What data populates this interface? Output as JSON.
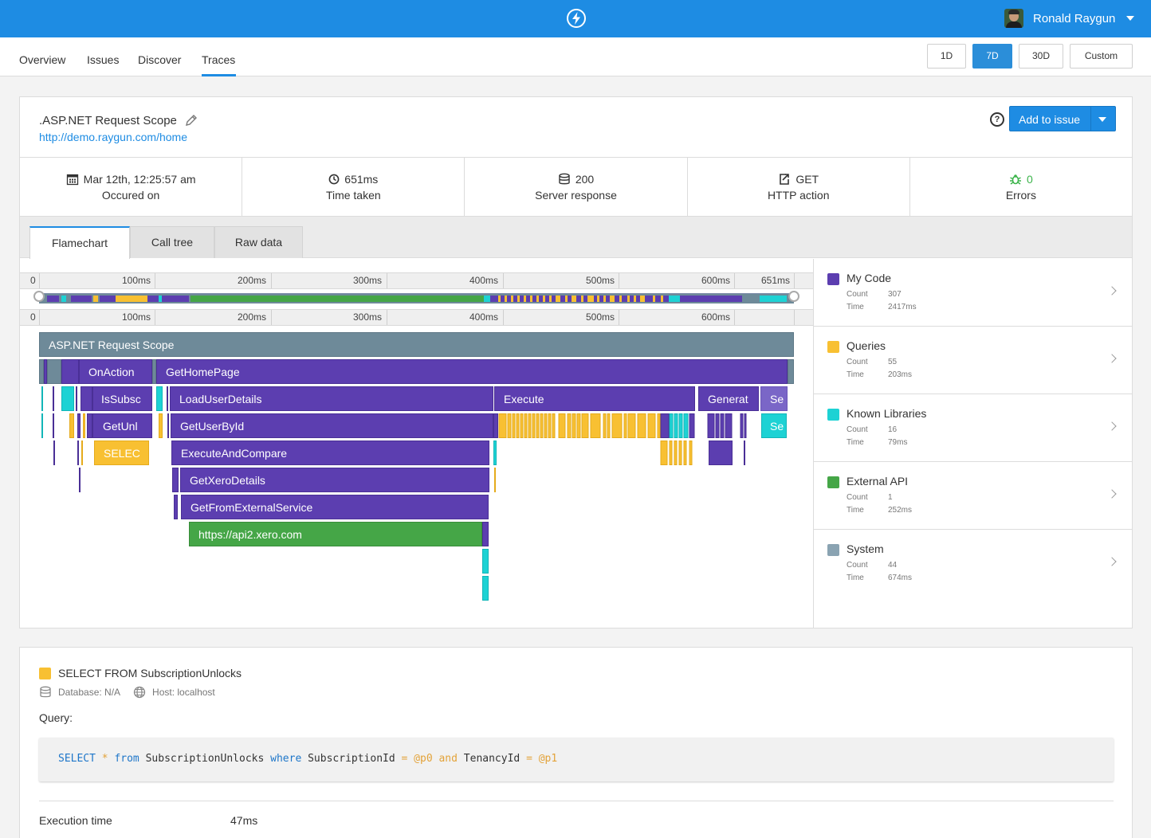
{
  "user": {
    "name": "Ronald Raygun"
  },
  "nav": {
    "items": [
      {
        "label": "Overview"
      },
      {
        "label": "Issues"
      },
      {
        "label": "Discover"
      },
      {
        "label": "Traces"
      }
    ],
    "active": "Traces",
    "ranges": [
      {
        "label": "1D"
      },
      {
        "label": "7D"
      },
      {
        "label": "30D"
      },
      {
        "label": "Custom"
      }
    ],
    "active_range": "7D"
  },
  "trace": {
    "title": ".ASP.NET Request Scope",
    "url": "http://demo.raygun.com/home",
    "add_button": "Add to issue",
    "help": "?"
  },
  "stats": [
    {
      "icon": "calendar-icon",
      "value": "Mar 12th, 12:25:57 am",
      "label": "Occured on"
    },
    {
      "icon": "clock-icon",
      "value": "651ms",
      "label": "Time taken"
    },
    {
      "icon": "database-icon",
      "value": "200",
      "label": "Server response"
    },
    {
      "icon": "export-icon",
      "value": "GET",
      "label": "HTTP action"
    },
    {
      "icon": "bug-icon",
      "value": "0",
      "label": "Errors"
    }
  ],
  "tabs": [
    {
      "label": "Flamechart"
    },
    {
      "label": "Call tree"
    },
    {
      "label": "Raw data"
    }
  ],
  "active_tab": "Flamechart",
  "timeline": {
    "top_ticks": [
      "0",
      "100ms",
      "200ms",
      "300ms",
      "400ms",
      "500ms",
      "600ms",
      "651ms"
    ],
    "bottom_ticks": [
      "0",
      "100ms",
      "200ms",
      "300ms",
      "400ms",
      "500ms",
      "600ms"
    ]
  },
  "flame": {
    "labels": {
      "root": "ASP.NET Request Scope",
      "onaction": "OnAction",
      "gethomepage": "GetHomePage",
      "issubsc": "IsSubsc",
      "loaduserdetails": "LoadUserDetails",
      "execute": "Execute",
      "generat": "Generat",
      "se1": "Se",
      "getunl": "GetUnl",
      "getuserbyid": "GetUserById",
      "se2": "Se",
      "selec": "SELEC",
      "executeandcompare": "ExecuteAndCompare",
      "getxerodetails": "GetXeroDetails",
      "getfromexternalservice": "GetFromExternalService",
      "api": "https://api2.xero.com"
    }
  },
  "colors": {
    "my_code": "#5c3eb0",
    "queries": "#f8c032",
    "known_libraries": "#1dd2d4",
    "external_api": "#45a647",
    "system": "#6e8a99",
    "accent": "#1e8ce3"
  },
  "legend": [
    {
      "name": "My Code",
      "count_label": "Count",
      "count": "307",
      "time_label": "Time",
      "time": "2417ms"
    },
    {
      "name": "Queries",
      "count_label": "Count",
      "count": "55",
      "time_label": "Time",
      "time": "203ms"
    },
    {
      "name": "Known Libraries",
      "count_label": "Count",
      "count": "16",
      "time_label": "Time",
      "time": "79ms"
    },
    {
      "name": "External API",
      "count_label": "Count",
      "count": "1",
      "time_label": "Time",
      "time": "252ms"
    },
    {
      "name": "System",
      "count_label": "Count",
      "count": "44",
      "time_label": "Time",
      "time": "674ms"
    }
  ],
  "detail": {
    "title": "SELECT FROM SubscriptionUnlocks",
    "database": "Database: N/A",
    "host": "Host: localhost",
    "query_label": "Query:",
    "query": {
      "select": "SELECT",
      "star": "*",
      "from": "from",
      "table": "SubscriptionUnlocks",
      "where": "where",
      "col1": "SubscriptionId",
      "eq1": "=",
      "p0": "@p0",
      "and": "and",
      "col2": "TenancyId",
      "eq2": "=",
      "p1": "@p1"
    },
    "exec_label": "Execution time",
    "exec_value": "47ms"
  }
}
